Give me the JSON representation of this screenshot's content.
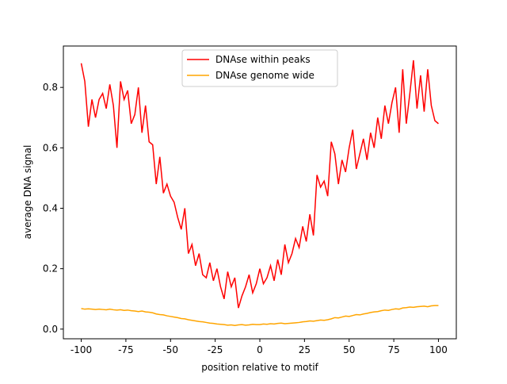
{
  "chart_data": {
    "type": "line",
    "xlabel": "position relative to motif",
    "ylabel": "average DNA signal",
    "x": [
      -100,
      -98,
      -96,
      -94,
      -92,
      -90,
      -88,
      -86,
      -84,
      -82,
      -80,
      -78,
      -76,
      -74,
      -72,
      -70,
      -68,
      -66,
      -64,
      -62,
      -60,
      -58,
      -56,
      -54,
      -52,
      -50,
      -48,
      -46,
      -44,
      -42,
      -40,
      -38,
      -36,
      -34,
      -32,
      -30,
      -28,
      -26,
      -24,
      -22,
      -20,
      -18,
      -16,
      -14,
      -12,
      -10,
      -8,
      -6,
      -4,
      -2,
      0,
      2,
      4,
      6,
      8,
      10,
      12,
      14,
      16,
      18,
      20,
      22,
      24,
      26,
      28,
      30,
      32,
      34,
      36,
      38,
      40,
      42,
      44,
      46,
      48,
      50,
      52,
      54,
      56,
      58,
      60,
      62,
      64,
      66,
      68,
      70,
      72,
      74,
      76,
      78,
      80,
      82,
      84,
      86,
      88,
      90,
      92,
      94,
      96,
      98,
      100
    ],
    "series": [
      {
        "name": "DNAse within peaks",
        "color": "#ff0000",
        "values": [
          0.88,
          0.82,
          0.67,
          0.76,
          0.7,
          0.76,
          0.78,
          0.73,
          0.81,
          0.74,
          0.6,
          0.82,
          0.76,
          0.79,
          0.68,
          0.71,
          0.8,
          0.65,
          0.74,
          0.62,
          0.61,
          0.48,
          0.57,
          0.45,
          0.48,
          0.44,
          0.42,
          0.37,
          0.33,
          0.4,
          0.25,
          0.28,
          0.21,
          0.25,
          0.18,
          0.17,
          0.22,
          0.16,
          0.2,
          0.14,
          0.1,
          0.19,
          0.14,
          0.17,
          0.07,
          0.11,
          0.14,
          0.18,
          0.12,
          0.15,
          0.2,
          0.15,
          0.17,
          0.21,
          0.16,
          0.23,
          0.18,
          0.28,
          0.22,
          0.25,
          0.3,
          0.27,
          0.34,
          0.29,
          0.38,
          0.31,
          0.51,
          0.47,
          0.49,
          0.44,
          0.62,
          0.58,
          0.48,
          0.56,
          0.52,
          0.6,
          0.66,
          0.53,
          0.58,
          0.63,
          0.56,
          0.65,
          0.6,
          0.7,
          0.63,
          0.74,
          0.68,
          0.75,
          0.8,
          0.65,
          0.86,
          0.68,
          0.78,
          0.89,
          0.73,
          0.84,
          0.72,
          0.86,
          0.74,
          0.69,
          0.68
        ]
      },
      {
        "name": "DNAse genome wide",
        "color": "#ffa500",
        "values": [
          0.068,
          0.066,
          0.067,
          0.066,
          0.065,
          0.066,
          0.065,
          0.064,
          0.066,
          0.064,
          0.063,
          0.064,
          0.062,
          0.063,
          0.061,
          0.06,
          0.058,
          0.06,
          0.057,
          0.056,
          0.054,
          0.05,
          0.048,
          0.047,
          0.044,
          0.042,
          0.04,
          0.038,
          0.035,
          0.034,
          0.031,
          0.029,
          0.027,
          0.025,
          0.024,
          0.022,
          0.02,
          0.019,
          0.017,
          0.016,
          0.015,
          0.013,
          0.014,
          0.012,
          0.014,
          0.015,
          0.013,
          0.014,
          0.016,
          0.015,
          0.015,
          0.017,
          0.016,
          0.018,
          0.017,
          0.019,
          0.02,
          0.018,
          0.019,
          0.02,
          0.021,
          0.022,
          0.024,
          0.025,
          0.027,
          0.026,
          0.028,
          0.03,
          0.029,
          0.031,
          0.034,
          0.038,
          0.037,
          0.04,
          0.043,
          0.042,
          0.045,
          0.048,
          0.047,
          0.05,
          0.052,
          0.055,
          0.057,
          0.058,
          0.061,
          0.063,
          0.062,
          0.065,
          0.067,
          0.066,
          0.07,
          0.071,
          0.073,
          0.072,
          0.074,
          0.075,
          0.076,
          0.074,
          0.077,
          0.078,
          0.078
        ]
      }
    ],
    "xlim": [
      -110,
      110
    ],
    "ylim": [
      -0.032,
      0.937
    ],
    "xticks": [
      -100,
      -75,
      -50,
      -25,
      0,
      25,
      50,
      75,
      100
    ],
    "yticks": [
      {
        "value": 0,
        "label": "0.0"
      },
      0.2,
      0.4,
      0.6,
      0.8
    ],
    "legend": "upper center",
    "grid": false
  }
}
